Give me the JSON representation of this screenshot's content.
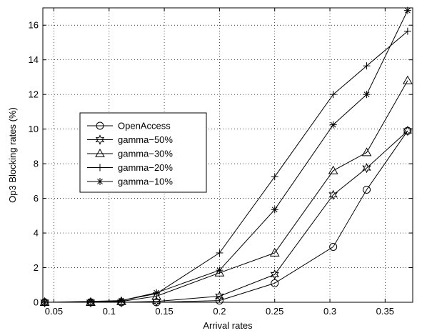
{
  "chart_data": {
    "type": "line",
    "xlabel": "Arrival rates",
    "ylabel": "Op3 Blocking rates (%)",
    "xlim": [
      0.04,
      0.375
    ],
    "ylim": [
      0,
      17
    ],
    "xticks": [
      0.05,
      0.1,
      0.15,
      0.2,
      0.25,
      0.3,
      0.35
    ],
    "xtick_labels": [
      "0.05",
      "0.1",
      "0.15",
      "0.2",
      "0.25",
      "0.3",
      "0.35"
    ],
    "yticks": [
      0,
      2,
      4,
      6,
      8,
      10,
      12,
      14,
      16
    ],
    "ytick_labels": [
      "0",
      "2",
      "4",
      "6",
      "8",
      "10",
      "12",
      "14",
      "16"
    ],
    "grid": true,
    "legend_position": "center-left",
    "x": [
      0.0417,
      0.0833,
      0.1111,
      0.1429,
      0.2,
      0.25,
      0.303,
      0.3333,
      0.3704
    ],
    "series": [
      {
        "name": "OpenAccess",
        "marker": "circle",
        "values": [
          0,
          0,
          0,
          0,
          0.1,
          1.1,
          3.2,
          6.5,
          9.9
        ]
      },
      {
        "name": "gamma−50%",
        "marker": "star6",
        "values": [
          0,
          0,
          0,
          0.05,
          0.35,
          1.6,
          6.2,
          7.75,
          9.9
        ]
      },
      {
        "name": "gamma−30%",
        "marker": "triangle",
        "values": [
          0,
          0,
          0.05,
          0.35,
          1.7,
          2.85,
          7.6,
          8.65,
          12.8
        ]
      },
      {
        "name": "gamma−20%",
        "marker": "plus",
        "values": [
          0,
          0,
          0.1,
          0.5,
          2.85,
          7.25,
          12.0,
          13.65,
          15.65
        ]
      },
      {
        "name": "gamma−10%",
        "marker": "asterisk",
        "values": [
          0,
          0.05,
          0.1,
          0.55,
          1.85,
          5.35,
          10.25,
          12.0,
          16.85
        ]
      }
    ]
  }
}
